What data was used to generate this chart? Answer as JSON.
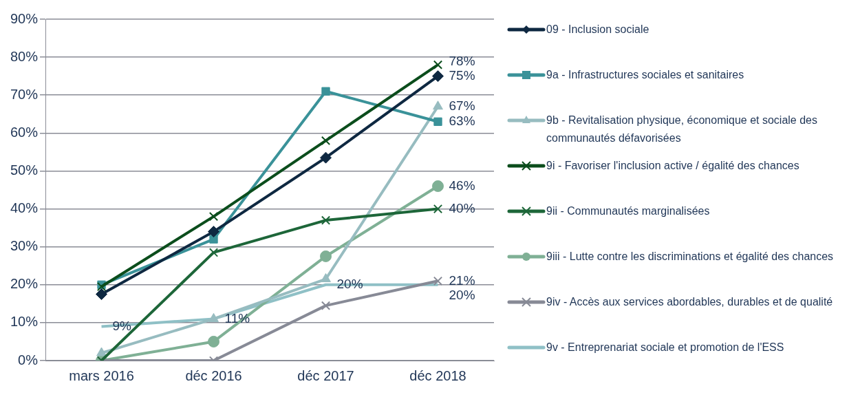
{
  "chart_data": {
    "type": "line",
    "categories": [
      "mars 2016",
      "déc 2016",
      "déc 2017",
      "déc 2018"
    ],
    "ylim": [
      0,
      90
    ],
    "yticks": [
      {
        "value": 0,
        "label": "0%"
      },
      {
        "value": 10,
        "label": "10%"
      },
      {
        "value": 20,
        "label": "20%"
      },
      {
        "value": 30,
        "label": "30%"
      },
      {
        "value": 40,
        "label": "40%"
      },
      {
        "value": 50,
        "label": "50%"
      },
      {
        "value": 60,
        "label": "60%"
      },
      {
        "value": 70,
        "label": "70%"
      },
      {
        "value": 80,
        "label": "80%"
      },
      {
        "value": 90,
        "label": "90%"
      }
    ],
    "grid": "y",
    "legend": "right",
    "series": [
      {
        "name": "09 - Inclusion sociale",
        "color": "#0e2841",
        "marker": "diamond",
        "values": [
          17.5,
          34,
          53.5,
          75
        ],
        "value_labels": [
          null,
          null,
          null,
          "75%"
        ]
      },
      {
        "name": "9a - Infrastructures sociales et sanitaires",
        "color": "#3a9299",
        "marker": "square",
        "values": [
          20,
          32,
          71,
          63
        ],
        "value_labels": [
          null,
          null,
          null,
          "63%"
        ]
      },
      {
        "name": "9b - Revitalisation physique, économique et sociale des communautés défavorisées",
        "color": "#97bcc0",
        "marker": "triangle",
        "values": [
          2,
          11,
          21.5,
          67
        ],
        "value_labels": [
          null,
          null,
          null,
          "67%"
        ]
      },
      {
        "name": "9i - Favoriser l'inclusion active / égalité des chances",
        "color": "#0b4d1c",
        "marker": "cross",
        "values": [
          19.5,
          38,
          58,
          78
        ],
        "value_labels": [
          null,
          null,
          null,
          "78%"
        ]
      },
      {
        "name": "9ii - Communautés marginalisées",
        "color": "#1d6639",
        "marker": "cross",
        "values": [
          0,
          28.5,
          37,
          40
        ],
        "value_labels": [
          null,
          null,
          null,
          "40%"
        ]
      },
      {
        "name": "9iii - Lutte contre les discriminations et égalité des chances",
        "color": "#7fb095",
        "marker": "circle",
        "values": [
          0,
          5,
          27.5,
          46
        ],
        "value_labels": [
          null,
          null,
          null,
          "46%"
        ]
      },
      {
        "name": "9iv - Accès aux services abordables, durables et de qualité",
        "color": "#878a96",
        "marker": "cross",
        "values": [
          0,
          0,
          14.5,
          21
        ],
        "value_labels": [
          null,
          null,
          null,
          "21%"
        ]
      },
      {
        "name": "9v - Entreprenariat sociale et promotion de l'ESS",
        "color": "#8fc0c6",
        "marker": "none",
        "values": [
          9,
          11,
          20,
          20
        ],
        "value_labels": [
          "9%",
          "11%",
          "20%",
          "20%"
        ]
      }
    ]
  }
}
